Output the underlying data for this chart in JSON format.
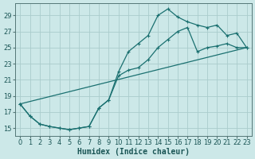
{
  "xlabel": "Humidex (Indice chaleur)",
  "bg_color": "#cce8e8",
  "grid_color": "#aacccc",
  "line_color": "#1a7070",
  "xlim": [
    -0.5,
    23.5
  ],
  "ylim": [
    14.0,
    30.5
  ],
  "xticks": [
    0,
    1,
    2,
    3,
    4,
    5,
    6,
    7,
    8,
    9,
    10,
    11,
    12,
    13,
    14,
    15,
    16,
    17,
    18,
    19,
    20,
    21,
    22,
    23
  ],
  "yticks": [
    15,
    17,
    19,
    21,
    23,
    25,
    27,
    29
  ],
  "line1_x": [
    0,
    1,
    2,
    3,
    4,
    5,
    6,
    7,
    8,
    9,
    10,
    11,
    12,
    13,
    14,
    15,
    16,
    17,
    18,
    19,
    20,
    21,
    22,
    23
  ],
  "line1_y": [
    18.0,
    16.5,
    15.5,
    15.2,
    15.0,
    14.8,
    15.0,
    15.2,
    17.5,
    18.5,
    22.0,
    24.5,
    25.5,
    26.5,
    29.0,
    29.8,
    28.8,
    28.2,
    27.8,
    27.5,
    27.8,
    26.5,
    26.8,
    25.0
  ],
  "line2_x": [
    0,
    1,
    2,
    3,
    4,
    5,
    6,
    7,
    8,
    9,
    10,
    11,
    12,
    13,
    14,
    15,
    16,
    17,
    18,
    19,
    20,
    21,
    22,
    23
  ],
  "line2_y": [
    18.0,
    16.5,
    15.5,
    15.2,
    15.0,
    14.8,
    15.0,
    15.2,
    17.5,
    18.5,
    21.5,
    22.2,
    22.5,
    23.5,
    25.0,
    26.0,
    27.0,
    27.5,
    24.5,
    25.0,
    25.2,
    25.5,
    25.0,
    25.0
  ],
  "line3_x": [
    0,
    23
  ],
  "line3_y": [
    18.0,
    25.0
  ],
  "marker": "+",
  "markersize": 3,
  "linewidth": 0.9,
  "xlabel_fontsize": 7,
  "tick_fontsize": 6,
  "label_color": "#1a5555"
}
